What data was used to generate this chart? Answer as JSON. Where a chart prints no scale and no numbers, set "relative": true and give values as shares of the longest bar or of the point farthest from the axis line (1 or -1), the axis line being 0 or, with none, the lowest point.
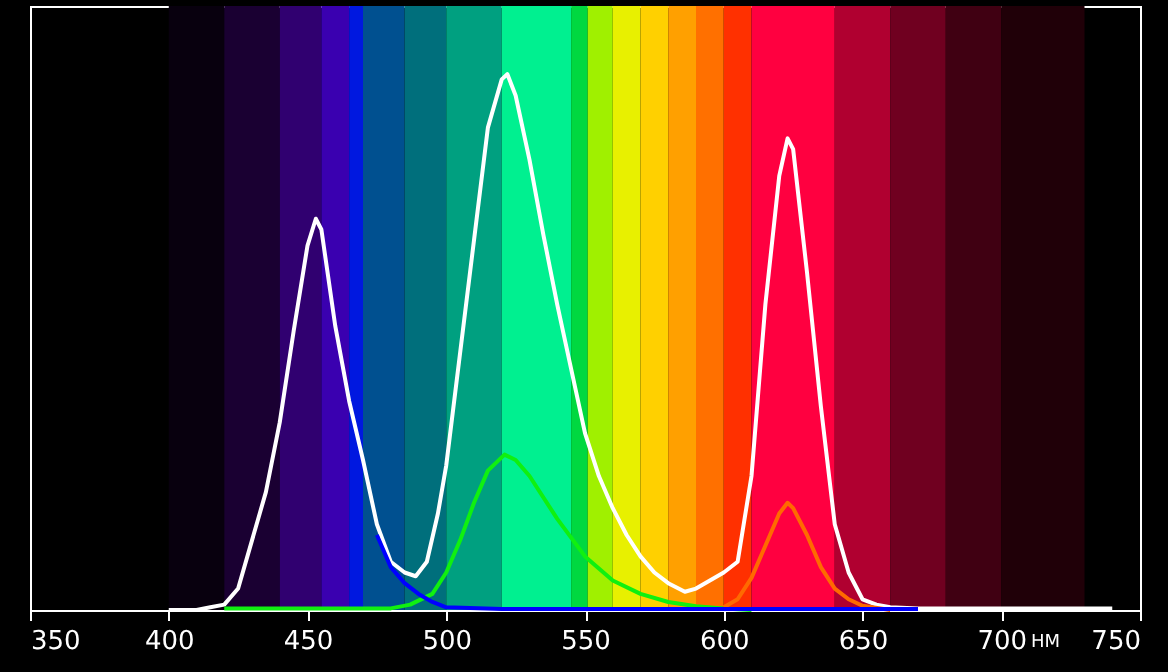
{
  "chart_data": {
    "type": "line",
    "relative": true,
    "xlabel": "НМ",
    "xlim": [
      350,
      750
    ],
    "xticks": [
      350,
      400,
      450,
      500,
      550,
      600,
      650,
      700,
      750
    ],
    "bands": [
      {
        "axis": "x",
        "from": 400,
        "to": 420,
        "color": "#08000e"
      },
      {
        "axis": "x",
        "from": 420,
        "to": 440,
        "color": "#1a0032"
      },
      {
        "axis": "x",
        "from": 440,
        "to": 455,
        "color": "#300070"
      },
      {
        "axis": "x",
        "from": 455,
        "to": 465,
        "color": "#3a00b0"
      },
      {
        "axis": "x",
        "from": 465,
        "to": 470,
        "color": "#0018e0"
      },
      {
        "axis": "x",
        "from": 470,
        "to": 485,
        "color": "#005090"
      },
      {
        "axis": "x",
        "from": 485,
        "to": 500,
        "color": "#006f7c"
      },
      {
        "axis": "x",
        "from": 500,
        "to": 520,
        "color": "#00a080"
      },
      {
        "axis": "x",
        "from": 520,
        "to": 545,
        "color": "#00f090"
      },
      {
        "axis": "x",
        "from": 545,
        "to": 551,
        "color": "#00d840"
      },
      {
        "axis": "x",
        "from": 551,
        "to": 560,
        "color": "#a0f000"
      },
      {
        "axis": "x",
        "from": 560,
        "to": 570,
        "color": "#e8f000"
      },
      {
        "axis": "x",
        "from": 570,
        "to": 580,
        "color": "#ffd000"
      },
      {
        "axis": "x",
        "from": 580,
        "to": 590,
        "color": "#ffa000"
      },
      {
        "axis": "x",
        "from": 590,
        "to": 600,
        "color": "#ff7000"
      },
      {
        "axis": "x",
        "from": 600,
        "to": 610,
        "color": "#ff3000"
      },
      {
        "axis": "x",
        "from": 610,
        "to": 640,
        "color": "#ff0040"
      },
      {
        "axis": "x",
        "from": 640,
        "to": 660,
        "color": "#b00030"
      },
      {
        "axis": "x",
        "from": 660,
        "to": 680,
        "color": "#700020"
      },
      {
        "axis": "x",
        "from": 680,
        "to": 700,
        "color": "#400012"
      },
      {
        "axis": "x",
        "from": 700,
        "to": 730,
        "color": "#200008"
      }
    ],
    "series": [
      {
        "color": "#ffffff",
        "x": [
          400,
          410,
          415,
          420,
          425,
          430,
          435,
          440,
          445,
          450,
          453,
          455,
          460,
          465,
          470,
          475,
          480,
          485,
          489,
          493,
          497,
          500,
          505,
          510,
          515,
          520,
          522,
          525,
          530,
          535,
          540,
          545,
          550,
          555,
          560,
          565,
          570,
          575,
          580,
          586,
          590,
          595,
          600,
          605,
          610,
          615,
          620,
          623,
          625,
          630,
          635,
          640,
          645,
          650,
          655,
          660,
          670,
          680,
          700,
          740
        ],
        "values": [
          0,
          0,
          0.005,
          0.01,
          0.04,
          0.13,
          0.22,
          0.35,
          0.52,
          0.68,
          0.73,
          0.71,
          0.53,
          0.39,
          0.28,
          0.16,
          0.09,
          0.07,
          0.063,
          0.09,
          0.18,
          0.27,
          0.48,
          0.69,
          0.9,
          0.99,
          1.0,
          0.96,
          0.84,
          0.7,
          0.57,
          0.45,
          0.33,
          0.25,
          0.19,
          0.14,
          0.1,
          0.07,
          0.05,
          0.034,
          0.04,
          0.055,
          0.07,
          0.09,
          0.25,
          0.57,
          0.81,
          0.88,
          0.86,
          0.63,
          0.38,
          0.16,
          0.07,
          0.02,
          0.01,
          0.005,
          0.003,
          0.003,
          0.003,
          0.003
        ]
      },
      {
        "color": "#10f010",
        "x": [
          420,
          480,
          487,
          495,
          500,
          505,
          510,
          515,
          521,
          525,
          530,
          540,
          550,
          560,
          570,
          580,
          590,
          600,
          610
        ],
        "values": [
          0.003,
          0.003,
          0.01,
          0.03,
          0.07,
          0.13,
          0.2,
          0.26,
          0.29,
          0.28,
          0.25,
          0.17,
          0.1,
          0.055,
          0.03,
          0.015,
          0.007,
          0.003,
          0
        ]
      },
      {
        "color": "#ff6a00",
        "x": [
          600,
          605,
          610,
          615,
          620,
          623,
          625,
          630,
          635,
          640,
          645,
          650,
          660
        ],
        "values": [
          0.005,
          0.02,
          0.06,
          0.12,
          0.18,
          0.2,
          0.19,
          0.14,
          0.08,
          0.04,
          0.02,
          0.008,
          0
        ]
      },
      {
        "color": "#0000ff",
        "x": [
          475,
          480,
          485,
          490,
          495,
          500,
          520,
          670
        ],
        "values": [
          0.14,
          0.08,
          0.05,
          0.03,
          0.015,
          0.005,
          0.002,
          0.002
        ]
      }
    ]
  }
}
